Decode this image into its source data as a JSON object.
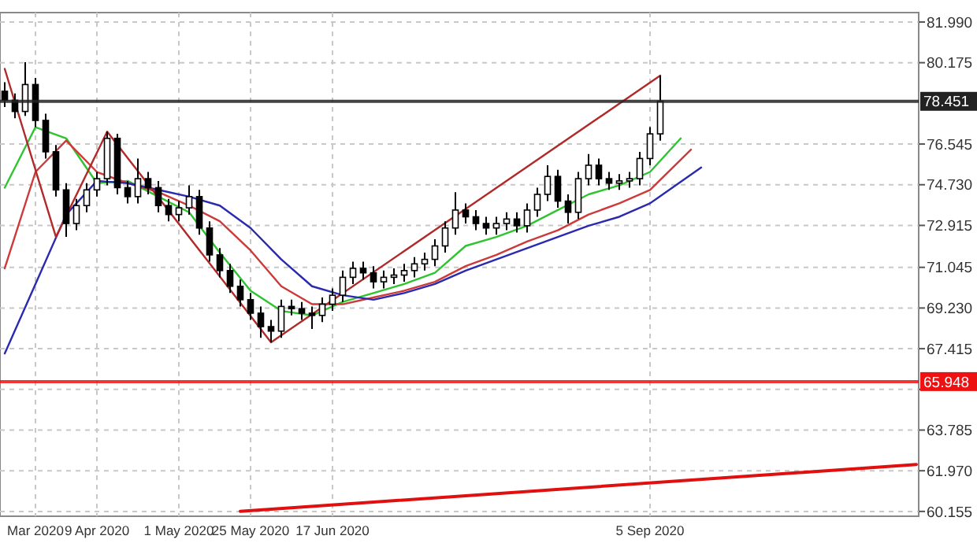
{
  "chart_data": {
    "type": "candlestick",
    "categories": [
      null,
      null,
      null,
      "Mar 2020",
      null,
      null,
      null,
      null,
      null,
      "9 Apr 2020",
      null,
      null,
      null,
      null,
      null,
      null,
      null,
      "1 May 2020",
      null,
      null,
      null,
      null,
      null,
      null,
      "25 May 2020",
      null,
      null,
      null,
      null,
      null,
      null,
      null,
      "17 Jun 2020",
      null,
      null,
      null,
      null,
      null,
      null,
      null,
      null,
      null,
      null,
      null,
      null,
      null,
      null,
      null,
      null,
      null,
      null,
      null,
      null,
      null,
      null,
      null,
      null,
      null,
      null,
      null,
      null,
      null,
      null,
      "5 Sep 2020",
      null,
      null,
      null,
      null,
      null,
      null,
      null,
      null,
      null,
      null,
      null,
      null,
      null,
      null,
      null,
      null,
      null,
      null,
      null,
      null,
      null,
      null,
      null,
      null,
      null,
      null
    ],
    "ohlc": [
      [
        78.9,
        79.3,
        78.2,
        78.5
      ],
      [
        78.5,
        78.8,
        77.7,
        78.0
      ],
      [
        78.0,
        80.2,
        77.8,
        79.2
      ],
      [
        79.2,
        79.5,
        77.3,
        77.6
      ],
      [
        77.6,
        77.9,
        75.9,
        76.2
      ],
      [
        76.2,
        76.5,
        74.2,
        74.5
      ],
      [
        74.5,
        74.8,
        72.4,
        73.0
      ],
      [
        73.0,
        74.1,
        72.7,
        73.8
      ],
      [
        73.8,
        74.8,
        73.5,
        74.5
      ],
      [
        74.5,
        75.3,
        74.2,
        75.0
      ],
      [
        75.0,
        77.1,
        74.7,
        76.8
      ],
      [
        76.8,
        77.0,
        74.3,
        74.6
      ],
      [
        74.6,
        74.9,
        73.9,
        74.2
      ],
      [
        74.2,
        75.9,
        73.9,
        75.0
      ],
      [
        75.0,
        75.3,
        74.3,
        74.6
      ],
      [
        74.6,
        74.9,
        73.5,
        73.8
      ],
      [
        73.8,
        74.1,
        73.1,
        73.4
      ],
      [
        73.4,
        74.0,
        73.1,
        73.7
      ],
      [
        73.7,
        74.7,
        73.4,
        74.2
      ],
      [
        74.2,
        74.5,
        72.5,
        72.8
      ],
      [
        72.8,
        73.1,
        71.3,
        71.6
      ],
      [
        71.6,
        71.9,
        70.6,
        70.9
      ],
      [
        70.9,
        71.2,
        69.9,
        70.2
      ],
      [
        70.2,
        70.5,
        69.3,
        69.6
      ],
      [
        69.6,
        69.9,
        68.7,
        69.0
      ],
      [
        69.0,
        69.3,
        67.9,
        68.4
      ],
      [
        68.4,
        68.7,
        67.7,
        68.2
      ],
      [
        68.2,
        69.6,
        67.9,
        69.3
      ],
      [
        69.3,
        69.6,
        68.9,
        69.2
      ],
      [
        69.2,
        69.5,
        68.7,
        69.0
      ],
      [
        69.0,
        69.3,
        68.3,
        68.9
      ],
      [
        68.9,
        69.7,
        68.6,
        69.4
      ],
      [
        69.4,
        70.1,
        69.1,
        69.8
      ],
      [
        69.8,
        70.9,
        69.5,
        70.6
      ],
      [
        70.6,
        71.3,
        70.3,
        71.0
      ],
      [
        71.0,
        71.3,
        70.5,
        70.8
      ],
      [
        70.8,
        71.1,
        70.1,
        70.4
      ],
      [
        70.4,
        70.9,
        70.1,
        70.6
      ],
      [
        70.6,
        71.0,
        70.3,
        70.7
      ],
      [
        70.7,
        71.2,
        70.4,
        70.9
      ],
      [
        70.9,
        71.5,
        70.6,
        71.2
      ],
      [
        71.2,
        71.7,
        70.9,
        71.4
      ],
      [
        71.4,
        72.3,
        71.1,
        72.0
      ],
      [
        72.0,
        73.1,
        71.7,
        72.8
      ],
      [
        72.8,
        74.4,
        72.5,
        73.6
      ],
      [
        73.6,
        73.9,
        73.0,
        73.3
      ],
      [
        73.3,
        73.6,
        72.7,
        73.0
      ],
      [
        73.0,
        73.3,
        72.5,
        72.8
      ],
      [
        72.8,
        73.3,
        72.5,
        73.0
      ],
      [
        73.0,
        73.5,
        72.7,
        73.2
      ],
      [
        73.2,
        73.5,
        72.6,
        72.9
      ],
      [
        72.9,
        73.9,
        72.6,
        73.6
      ],
      [
        73.6,
        74.6,
        73.3,
        74.3
      ],
      [
        74.3,
        75.6,
        74.0,
        75.1
      ],
      [
        75.1,
        75.4,
        73.7,
        74.0
      ],
      [
        74.0,
        74.3,
        73.0,
        73.5
      ],
      [
        73.5,
        75.3,
        73.2,
        75.0
      ],
      [
        75.0,
        76.1,
        74.7,
        75.6
      ],
      [
        75.6,
        75.9,
        74.7,
        75.0
      ],
      [
        75.0,
        75.3,
        74.5,
        74.8
      ],
      [
        74.8,
        75.2,
        74.5,
        74.9
      ],
      [
        74.9,
        75.3,
        74.6,
        75.0
      ],
      [
        75.0,
        76.2,
        74.7,
        75.9
      ],
      [
        75.9,
        77.3,
        75.6,
        77.0
      ],
      [
        77.0,
        79.6,
        76.7,
        78.45
      ],
      null,
      null,
      null,
      null,
      null,
      null,
      null,
      null,
      null,
      null,
      null,
      null,
      null,
      null,
      null,
      null,
      null,
      null,
      null,
      null,
      null,
      null,
      null,
      null,
      null
    ],
    "series": [
      {
        "type": "line",
        "color": "#2fc42f",
        "values": [
          74.6,
          null,
          null,
          77.3,
          null,
          null,
          76.8,
          null,
          null,
          74.8,
          null,
          null,
          74.9,
          null,
          null,
          74.2,
          null,
          null,
          73.5,
          null,
          null,
          71.7,
          null,
          null,
          70.0,
          null,
          null,
          69.1,
          null,
          null,
          68.9,
          null,
          null,
          69.5,
          null,
          null,
          69.9,
          null,
          null,
          70.3,
          null,
          null,
          70.8,
          null,
          null,
          72.0,
          null,
          null,
          72.4,
          null,
          null,
          72.9,
          null,
          null,
          73.6,
          null,
          null,
          74.3,
          null,
          null,
          74.7,
          null,
          null,
          75.3,
          null,
          null,
          76.8,
          null,
          null,
          null,
          null,
          null,
          null,
          null,
          null,
          null,
          null,
          null,
          null,
          null,
          null,
          null,
          null,
          null,
          null,
          null,
          null,
          null,
          null,
          null
        ]
      },
      {
        "type": "line",
        "color": "#cc3a3a",
        "values": [
          71.0,
          null,
          null,
          75.3,
          null,
          null,
          76.7,
          null,
          null,
          75.3,
          null,
          null,
          74.8,
          null,
          null,
          74.4,
          null,
          null,
          73.8,
          null,
          null,
          73.1,
          null,
          null,
          71.8,
          null,
          null,
          70.2,
          null,
          null,
          69.4,
          null,
          null,
          69.4,
          null,
          null,
          69.7,
          null,
          null,
          70.0,
          null,
          null,
          70.4,
          null,
          null,
          71.1,
          null,
          null,
          71.6,
          null,
          null,
          72.2,
          null,
          null,
          72.7,
          null,
          null,
          73.4,
          null,
          null,
          73.9,
          null,
          null,
          74.5,
          null,
          null,
          null,
          76.3,
          null,
          null,
          null,
          null,
          null,
          null,
          null,
          null,
          null,
          null,
          null,
          null,
          null,
          null,
          null,
          null,
          null,
          null,
          null,
          null,
          null,
          null
        ]
      },
      {
        "type": "line",
        "color": "#2a2ab0",
        "values": [
          67.2,
          null,
          null,
          70.3,
          null,
          null,
          73.4,
          null,
          null,
          74.9,
          null,
          null,
          74.8,
          null,
          null,
          74.5,
          null,
          null,
          74.2,
          null,
          null,
          73.8,
          null,
          null,
          72.8,
          null,
          null,
          71.4,
          null,
          null,
          70.2,
          null,
          null,
          69.8,
          null,
          null,
          69.6,
          null,
          null,
          69.9,
          null,
          null,
          70.3,
          null,
          null,
          70.9,
          null,
          null,
          71.4,
          null,
          null,
          71.9,
          null,
          null,
          72.4,
          null,
          null,
          72.9,
          null,
          null,
          73.3,
          null,
          null,
          73.9,
          null,
          null,
          null,
          null,
          75.5,
          null,
          null,
          null,
          null,
          null,
          null,
          null,
          null,
          null,
          null,
          null,
          null,
          null,
          null,
          null,
          null,
          null,
          null,
          null,
          null,
          null
        ]
      },
      {
        "type": "line",
        "color": "#b02a2a",
        "values": [
          79.9,
          null,
          null,
          null,
          null,
          72.4,
          null,
          null,
          null,
          null,
          77.1,
          null,
          null,
          null,
          null,
          null,
          null,
          null,
          null,
          null,
          null,
          null,
          null,
          null,
          null,
          null,
          67.7,
          null,
          null,
          null,
          null,
          null,
          null,
          null,
          null,
          null,
          null,
          null,
          null,
          null,
          null,
          null,
          null,
          null,
          null,
          null,
          null,
          null,
          null,
          null,
          null,
          null,
          null,
          null,
          null,
          null,
          null,
          null,
          null,
          null,
          null,
          null,
          null,
          null,
          79.6,
          null,
          null,
          null,
          null,
          null,
          null,
          null,
          null,
          null,
          null,
          null,
          null,
          null,
          null,
          null,
          null,
          null,
          null,
          null,
          null,
          null,
          null,
          null,
          null,
          null
        ]
      },
      {
        "type": "line",
        "color": "#e01010",
        "values": [
          null,
          null,
          null,
          null,
          null,
          null,
          null,
          null,
          null,
          null,
          null,
          null,
          null,
          null,
          null,
          null,
          null,
          null,
          null,
          null,
          null,
          null,
          null,
          60.16,
          null,
          null,
          null,
          null,
          null,
          null,
          null,
          null,
          null,
          null,
          null,
          null,
          null,
          null,
          null,
          null,
          null,
          null,
          null,
          null,
          null,
          null,
          null,
          null,
          null,
          null,
          null,
          null,
          null,
          null,
          null,
          null,
          null,
          null,
          null,
          null,
          null,
          null,
          null,
          null,
          null,
          null,
          null,
          null,
          null,
          null,
          null,
          null,
          null,
          null,
          null,
          null,
          null,
          null,
          null,
          null,
          null,
          null,
          null,
          null,
          null,
          null,
          null,
          null,
          null,
          62.25
        ]
      }
    ],
    "ylim": [
      59.94,
      82.41
    ],
    "yticks": [
      {
        "value": 81.99,
        "label": "81.990"
      },
      {
        "value": 80.175,
        "label": "80.175"
      },
      {
        "value": 76.545,
        "label": "76.545"
      },
      {
        "value": 74.73,
        "label": "74.730"
      },
      {
        "value": 72.915,
        "label": "72.915"
      },
      {
        "value": 71.045,
        "label": "71.045"
      },
      {
        "value": 69.23,
        "label": "69.230"
      },
      {
        "value": 67.415,
        "label": "67.415"
      },
      {
        "value": 65.6,
        "label": null
      },
      {
        "value": 63.785,
        "label": "63.785"
      },
      {
        "value": 61.97,
        "label": "61.970"
      },
      {
        "value": 60.155,
        "label": "60.155"
      }
    ],
    "ref_lines": [
      {
        "axis": "y",
        "value": 65.948,
        "label": "65.948",
        "color": "#ee1111"
      },
      {
        "axis": "y",
        "value": 78.451,
        "label": "78.451",
        "color": "#222222"
      }
    ],
    "grid": true
  }
}
